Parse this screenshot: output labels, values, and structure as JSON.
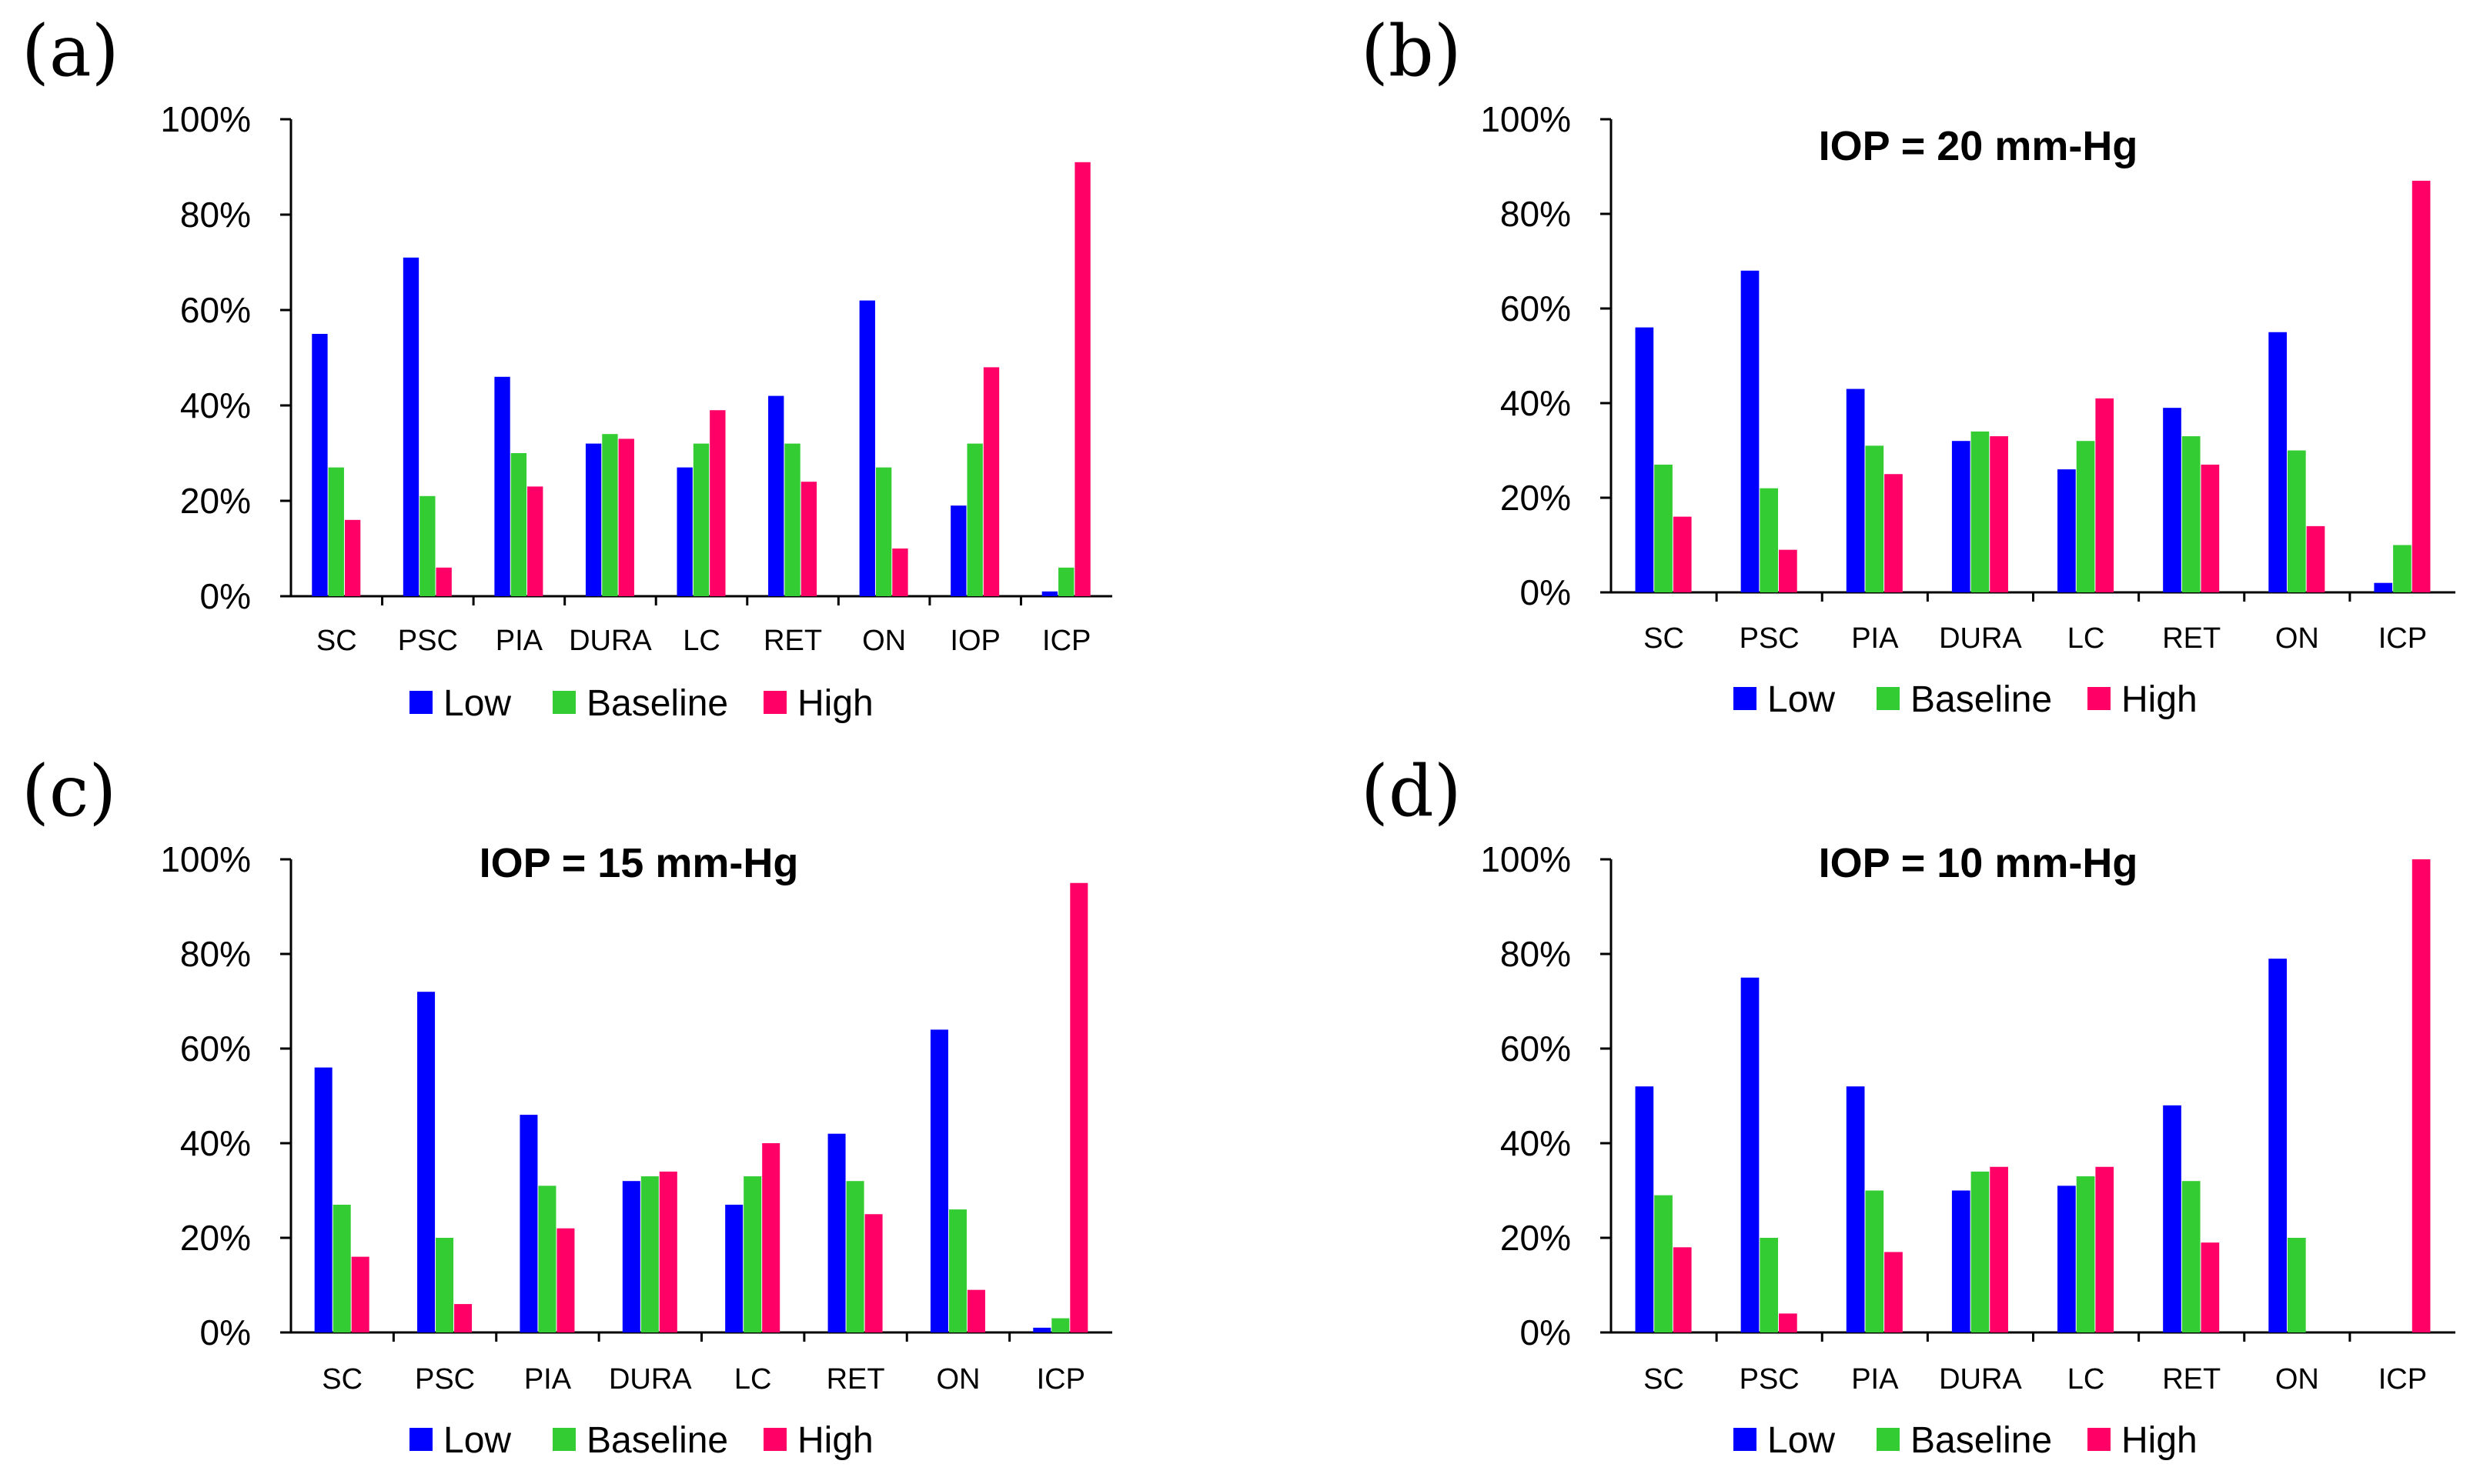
{
  "series_colors": [
    "#0000ff",
    "#33cc33",
    "#ff0066"
  ],
  "chart_data": [
    {
      "panel_label": "(a)",
      "type": "bar",
      "title": "",
      "categories": [
        "SC",
        "PSC",
        "PIA",
        "DURA",
        "LC",
        "RET",
        "ON",
        "IOP",
        "ICP"
      ],
      "series": [
        {
          "name": "Low",
          "values": [
            55,
            71,
            46,
            32,
            27,
            42,
            62,
            19,
            1
          ]
        },
        {
          "name": "Baseline",
          "values": [
            27,
            21,
            30,
            34,
            32,
            32,
            27,
            32,
            6
          ]
        },
        {
          "name": "High",
          "values": [
            16,
            6,
            23,
            33,
            39,
            24,
            10,
            48,
            91
          ]
        }
      ],
      "yticks": [
        "0%",
        "20%",
        "40%",
        "60%",
        "80%",
        "100%"
      ],
      "ylim": [
        0,
        100
      ],
      "legend": "bottom"
    },
    {
      "panel_label": "(b)",
      "type": "bar",
      "title": "IOP = 20 mm-Hg",
      "categories": [
        "SC",
        "PSC",
        "PIA",
        "DURA",
        "LC",
        "RET",
        "ON",
        "ICP"
      ],
      "series": [
        {
          "name": "Low",
          "values": [
            56,
            68,
            43,
            32,
            26,
            39,
            55,
            2
          ]
        },
        {
          "name": "Baseline",
          "values": [
            27,
            22,
            31,
            34,
            32,
            33,
            30,
            10
          ]
        },
        {
          "name": "High",
          "values": [
            16,
            9,
            25,
            33,
            41,
            27,
            14,
            87
          ]
        }
      ],
      "yticks": [
        "0%",
        "20%",
        "40%",
        "60%",
        "80%",
        "100%"
      ],
      "ylim": [
        0,
        100
      ],
      "legend": "bottom"
    },
    {
      "panel_label": "(c)",
      "type": "bar",
      "title": "IOP = 15 mm-Hg",
      "categories": [
        "SC",
        "PSC",
        "PIA",
        "DURA",
        "LC",
        "RET",
        "ON",
        "ICP"
      ],
      "series": [
        {
          "name": "Low",
          "values": [
            56,
            72,
            46,
            32,
            27,
            42,
            64,
            1
          ]
        },
        {
          "name": "Baseline",
          "values": [
            27,
            20,
            31,
            33,
            33,
            32,
            26,
            3
          ]
        },
        {
          "name": "High",
          "values": [
            16,
            6,
            22,
            34,
            40,
            25,
            9,
            95
          ]
        }
      ],
      "yticks": [
        "0%",
        "20%",
        "40%",
        "60%",
        "80%",
        "100%"
      ],
      "ylim": [
        0,
        100
      ],
      "legend": "bottom"
    },
    {
      "panel_label": "(d)",
      "type": "bar",
      "title": "IOP = 10 mm-Hg",
      "categories": [
        "SC",
        "PSC",
        "PIA",
        "DURA",
        "LC",
        "RET",
        "ON",
        "ICP"
      ],
      "series": [
        {
          "name": "Low",
          "values": [
            52,
            75,
            52,
            30,
            31,
            48,
            79,
            0
          ]
        },
        {
          "name": "Baseline",
          "values": [
            29,
            20,
            30,
            34,
            33,
            32,
            20,
            0
          ]
        },
        {
          "name": "High",
          "values": [
            18,
            4,
            17,
            35,
            35,
            19,
            0,
            100
          ]
        }
      ],
      "yticks": [
        "0%",
        "20%",
        "40%",
        "60%",
        "80%",
        "100%"
      ],
      "ylim": [
        0,
        100
      ],
      "legend": "bottom"
    }
  ]
}
